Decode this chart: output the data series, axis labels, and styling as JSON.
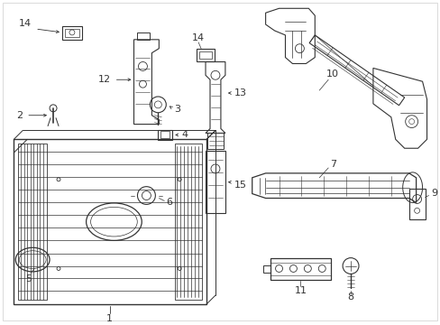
{
  "bg_color": "#ffffff",
  "line_color": "#333333",
  "figsize": [
    4.89,
    3.6
  ],
  "dpi": 100
}
